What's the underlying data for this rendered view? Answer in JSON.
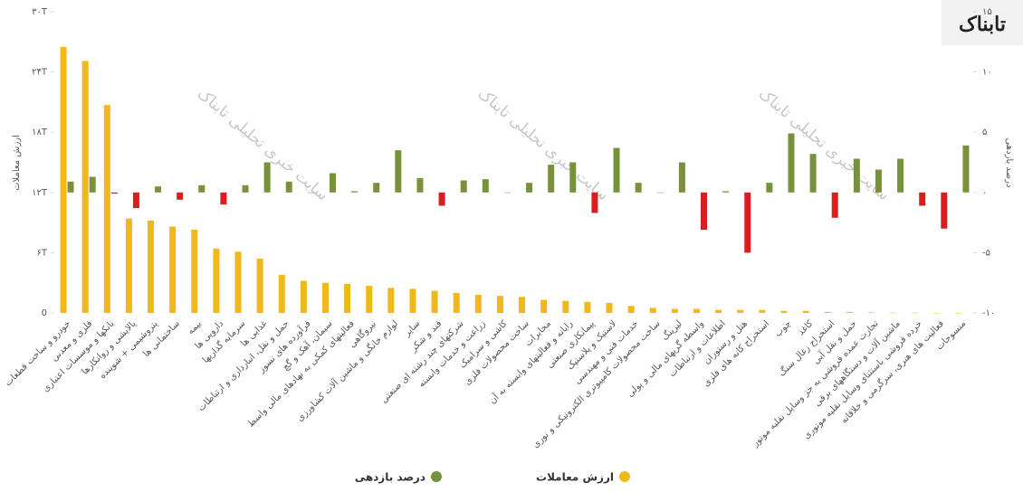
{
  "logo": "تابناک",
  "watermark": "سایت خبری تحلیلی تابناک",
  "chart_data": {
    "type": "bar",
    "y_label": "ارزش معاملات",
    "y2_label": "درصد بازدهی",
    "categories": [
      "خودرو و ساخت قطعات",
      "فلزی و معدنی",
      "بانکها و موسسات اعتباری",
      "پالایشی و روانکارها",
      "پتروشیمی + شوینده",
      "ساختمانی ها",
      "بیمه",
      "دارویی ها",
      "سرمایه گذاریها",
      "غذایی ها",
      "حمل و نقل، انبارداری و ارتباطات",
      "فرآورده های نسوز",
      "سیمان، آهک و گچ",
      "فعالیتهای کمکی به نهادهای مالی واسط",
      "نیروگاهی",
      "لوازم خانگی و ماشین آلات کشاورزی",
      "سایر",
      "قند و شکر",
      "شرکتهای چند رشته ای صنعتی",
      "زراعت و خدمات وابسته",
      "کاشی و سرامیک",
      "ساخت محصولات فلزی",
      "مخابرات",
      "رایانه و فعالیتهای وابسته به آن",
      "پیمانکاری صنعتی",
      "لاستیک و پلاستیک",
      "خدمات فنی و مهندسی",
      "ساخت محصولات کامپیوتری الکترونیکی و نوری",
      "لیزینگ",
      "واسطه گریهای مالی و پولی",
      "اطلاعات و ارتباطات",
      "هتل و رستوران",
      "استخراج کانه های فلزی",
      "چوب",
      "کاغذ",
      "استخراج زغال سنگ",
      "حمل و نقل آبی",
      "تجارت عمده فروشی به جز وسایل نقلیه موتور",
      "ماشین آلات و دستگاههای برقی",
      "خرده فروشی باستثنای وسایل نقلیه موتوری",
      "فعالیت های هنری، سرگرمی و خلاقانه",
      "منسوجات"
    ],
    "series": [
      {
        "name": "ارزش معاملات",
        "color": "#f0b818",
        "values": [
          26.5,
          25.1,
          20.7,
          9.4,
          9.2,
          8.6,
          8.3,
          6.4,
          6.1,
          5.4,
          3.8,
          3.2,
          3.0,
          2.9,
          2.7,
          2.5,
          2.4,
          2.2,
          2.0,
          1.8,
          1.7,
          1.6,
          1.3,
          1.2,
          1.1,
          1.0,
          0.7,
          0.5,
          0.4,
          0.4,
          0.3,
          0.3,
          0.3,
          0.2,
          0.2,
          0.1,
          0.1,
          0.05,
          0.03,
          0.02,
          0.01,
          0.01
        ]
      },
      {
        "name": "درصد بازدهی",
        "color": "#77923a",
        "negative_color": "#d81e1e",
        "axis": "y2",
        "values": [
          0.9,
          1.3,
          -0.1,
          -1.3,
          0.5,
          -0.6,
          0.6,
          -1.0,
          0.6,
          2.5,
          0.9,
          0,
          1.6,
          0.1,
          0.8,
          3.5,
          1.2,
          -1.1,
          1.0,
          1.1,
          0,
          0.8,
          2.3,
          2.5,
          -1.7,
          3.7,
          0.8,
          0,
          2.5,
          -3.1,
          0.1,
          -5.0,
          0.8,
          4.9,
          3.2,
          -2.1,
          2.8,
          1.9,
          2.8,
          -1.1,
          -3.0,
          3.9
        ]
      }
    ],
    "ylim": [
      0,
      30
    ],
    "yticks": [
      0,
      {
        "value": 6,
        "label": "۶T"
      },
      {
        "value": 12,
        "label": "۱۲T"
      },
      {
        "value": 18,
        "label": "۱۸T"
      },
      {
        "value": 24,
        "label": "۲۴T"
      },
      {
        "value": 30,
        "label": "۳۰T"
      }
    ],
    "y2lim": [
      -10,
      15
    ],
    "y2ticks": [
      {
        "value": -10,
        "label": "-۱۰"
      },
      {
        "value": -5,
        "label": "-۵"
      },
      {
        "value": 0,
        "label": "۰"
      },
      {
        "value": 5,
        "label": "۵"
      },
      {
        "value": 10,
        "label": "۱۰"
      },
      {
        "value": 15,
        "label": "۱۵"
      }
    ],
    "grid": false,
    "legend": "bottom"
  }
}
